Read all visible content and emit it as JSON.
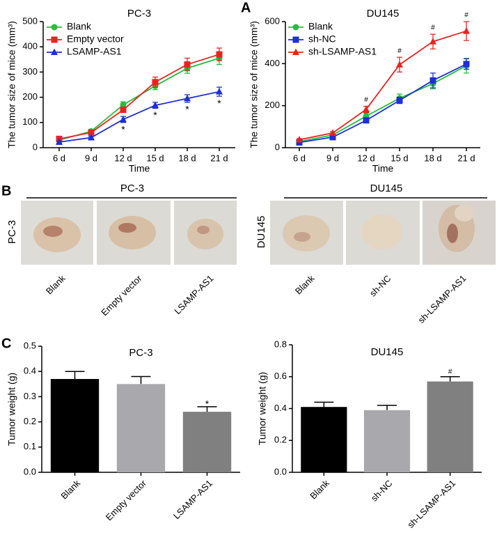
{
  "panel_labels": [
    "A",
    "B",
    "C"
  ],
  "chart_data": [
    {
      "type": "line",
      "title": "PC-3",
      "x_label": "Time",
      "y_label": "The tumor size of mice (mm³)",
      "categories": [
        "6 d",
        "9 d",
        "12 d",
        "15 d",
        "18 d",
        "21 d"
      ],
      "ylim": [
        0,
        500
      ],
      "yticks": [
        0,
        100,
        200,
        300,
        400,
        500
      ],
      "series": [
        {
          "name": "Blank",
          "color": "#22c03a",
          "marker": "circle",
          "values": [
            30,
            65,
            170,
            245,
            315,
            355
          ],
          "errors": [
            5,
            8,
            12,
            15,
            20,
            25
          ]
        },
        {
          "name": "Empty vector",
          "color": "#e8231f",
          "marker": "square",
          "values": [
            35,
            60,
            150,
            260,
            330,
            370
          ],
          "errors": [
            5,
            6,
            10,
            20,
            25,
            25
          ]
        },
        {
          "name": "LSAMP-AS1",
          "color": "#1d2fd6",
          "marker": "triangle",
          "values": [
            22,
            40,
            112,
            168,
            195,
            222
          ],
          "errors": [
            4,
            5,
            12,
            12,
            15,
            18
          ],
          "annotations": [
            null,
            null,
            "*",
            "*",
            "*",
            "*"
          ],
          "annotation_position": "below"
        }
      ]
    },
    {
      "type": "line",
      "title": "DU145",
      "x_label": "Time",
      "y_label": "The tumor size of mice (mm³)",
      "categories": [
        "6 d",
        "9 d",
        "12 d",
        "15 d",
        "18 d",
        "21 d"
      ],
      "ylim": [
        0,
        600
      ],
      "yticks": [
        0,
        200,
        400,
        600
      ],
      "series": [
        {
          "name": "Blank",
          "color": "#22c03a",
          "marker": "circle",
          "values": [
            30,
            60,
            150,
            235,
            305,
            390
          ],
          "errors": [
            5,
            8,
            15,
            20,
            25,
            35
          ]
        },
        {
          "name": "sh-NC",
          "color": "#1d2fd6",
          "marker": "square",
          "values": [
            25,
            50,
            130,
            225,
            320,
            398
          ],
          "errors": [
            5,
            6,
            10,
            15,
            35,
            25
          ]
        },
        {
          "name": "sh-LSAMP-AS1",
          "color": "#e8231f",
          "marker": "triangle",
          "values": [
            38,
            70,
            182,
            395,
            505,
            555
          ],
          "errors": [
            5,
            6,
            15,
            35,
            35,
            45
          ],
          "annotations": [
            null,
            null,
            "#",
            "#",
            "#",
            "#"
          ],
          "annotation_position": "above"
        }
      ]
    },
    {
      "type": "bar",
      "title": "PC-3",
      "y_label": "Tumor weight (g)",
      "categories": [
        "Blank",
        "Empty vector",
        "LSAMP-AS1"
      ],
      "ylim": [
        0,
        0.5
      ],
      "yticks": [
        {
          "value": 0,
          "label": "0.0"
        },
        0.1,
        0.2,
        0.3,
        0.4,
        0.5
      ],
      "values": [
        0.37,
        0.35,
        0.24
      ],
      "errors": [
        0.03,
        0.03,
        0.02
      ],
      "colors": [
        "#000000",
        "#a8a8ad",
        "#808080"
      ],
      "annotations": [
        null,
        null,
        "*"
      ]
    },
    {
      "type": "bar",
      "title": "DU145",
      "y_label": "Tumor weight (g)",
      "categories": [
        "Blank",
        "sh-NC",
        "sh-LSAMP-AS1"
      ],
      "ylim": [
        0,
        0.8
      ],
      "yticks": [
        {
          "value": 0,
          "label": "0.0"
        },
        0.2,
        0.4,
        0.6,
        0.8
      ],
      "values": [
        0.41,
        0.39,
        0.57
      ],
      "errors": [
        0.03,
        0.03,
        0.03
      ],
      "colors": [
        "#000000",
        "#a8a8ad",
        "#808080"
      ],
      "annotations": [
        null,
        null,
        "#"
      ]
    }
  ],
  "photos": [
    {
      "title": "PC-3",
      "side_label": "PC-3",
      "samples": [
        "Blank",
        "Empty vector",
        "LSAMP-AS1"
      ]
    },
    {
      "title": "DU145",
      "side_label": "DU145",
      "samples": [
        "Blank",
        "sh-NC",
        "sh-LSAMP-AS1"
      ]
    }
  ]
}
